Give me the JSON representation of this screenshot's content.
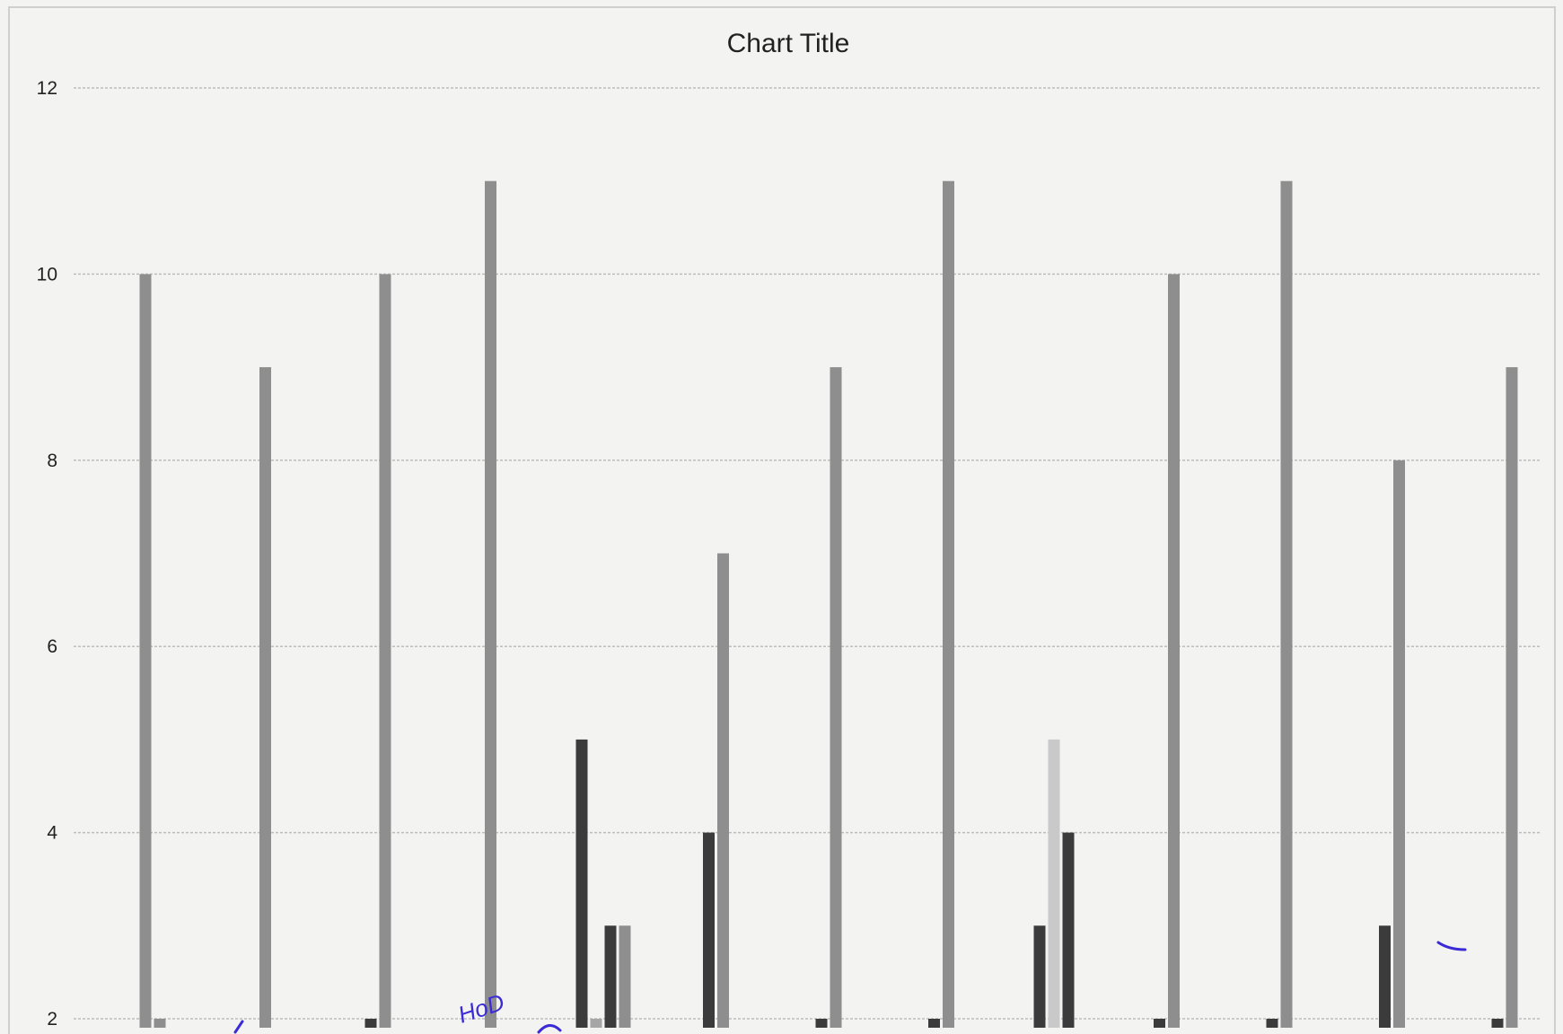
{
  "chart_data": {
    "type": "bar",
    "title": "Chart Title",
    "xlabel": "",
    "ylabel": "",
    "ylim": [
      2,
      12
    ],
    "yticks": [
      "2",
      "4",
      "6",
      "8",
      "10",
      "12"
    ],
    "grid": true,
    "legend": "none",
    "colors": {
      "series_a": "#8e8e8e",
      "series_b": "#3b3b3b",
      "series_c": "#a6a6a6",
      "series_d": "#c9c9c9",
      "grid": "#bdbdbd",
      "text": "#222222"
    },
    "groups": [
      {
        "bars": [
          {
            "series": "a",
            "value": 10
          },
          {
            "series": "a",
            "value": 2
          }
        ]
      },
      {
        "bars": [
          {
            "series": "a",
            "value": 9
          }
        ]
      },
      {
        "bars": [
          {
            "series": "b",
            "value": 2
          },
          {
            "series": "a",
            "value": 10
          }
        ]
      },
      {
        "bars": [
          {
            "series": "a",
            "value": 11
          }
        ]
      },
      {
        "bars": [
          {
            "series": "b",
            "value": 5
          },
          {
            "series": "c",
            "value": 2
          },
          {
            "series": "b",
            "value": 3
          },
          {
            "series": "a",
            "value": 3
          }
        ]
      },
      {
        "bars": [
          {
            "series": "b",
            "value": 4
          },
          {
            "series": "a",
            "value": 7
          }
        ]
      },
      {
        "bars": [
          {
            "series": "b",
            "value": 2
          },
          {
            "series": "a",
            "value": 9
          }
        ]
      },
      {
        "bars": [
          {
            "series": "b",
            "value": 2
          },
          {
            "series": "a",
            "value": 11
          }
        ]
      },
      {
        "bars": [
          {
            "series": "b",
            "value": 3
          },
          {
            "series": "d",
            "value": 5
          },
          {
            "series": "b",
            "value": 4
          }
        ]
      },
      {
        "bars": [
          {
            "series": "b",
            "value": 2
          },
          {
            "series": "a",
            "value": 10
          }
        ]
      },
      {
        "bars": [
          {
            "series": "b",
            "value": 2
          },
          {
            "series": "a",
            "value": 11
          }
        ]
      },
      {
        "bars": [
          {
            "series": "b",
            "value": 3
          },
          {
            "series": "a",
            "value": 8
          }
        ]
      },
      {
        "bars": [
          {
            "series": "b",
            "value": 2
          },
          {
            "series": "a",
            "value": 9
          }
        ]
      }
    ],
    "annotations": [
      "HoD"
    ]
  }
}
